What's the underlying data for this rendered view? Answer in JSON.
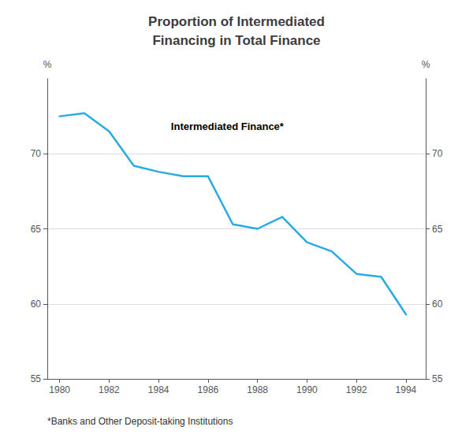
{
  "chart_data": {
    "type": "line",
    "title": "Proportion of Intermediated\nFinancing in Total Finance",
    "x": [
      1980,
      1981,
      1982,
      1983,
      1984,
      1985,
      1986,
      1987,
      1988,
      1989,
      1990,
      1991,
      1992,
      1993,
      1994
    ],
    "values": [
      72.5,
      72.7,
      71.5,
      69.2,
      68.8,
      68.5,
      68.5,
      65.3,
      65.0,
      65.8,
      64.1,
      63.5,
      62.0,
      61.8,
      59.3
    ],
    "color": "#29ABE2",
    "y_label": "%",
    "y2_label": "%",
    "xlim": [
      1979.5,
      1994.8
    ],
    "xticks": [
      1980,
      1982,
      1984,
      1986,
      1988,
      1990,
      1992,
      1994
    ],
    "ylim": [
      55,
      75
    ],
    "yticks": [
      55,
      60,
      65,
      70
    ],
    "y2lim": [
      55,
      75
    ],
    "y2ticks": [
      55,
      60,
      65,
      70
    ],
    "grid": true,
    "annotations": [
      {
        "text": "Intermediated Finance*",
        "x": 1984.5,
        "y": 71.8
      }
    ],
    "footnote": "*Banks and Other Deposit-taking Institutions"
  }
}
